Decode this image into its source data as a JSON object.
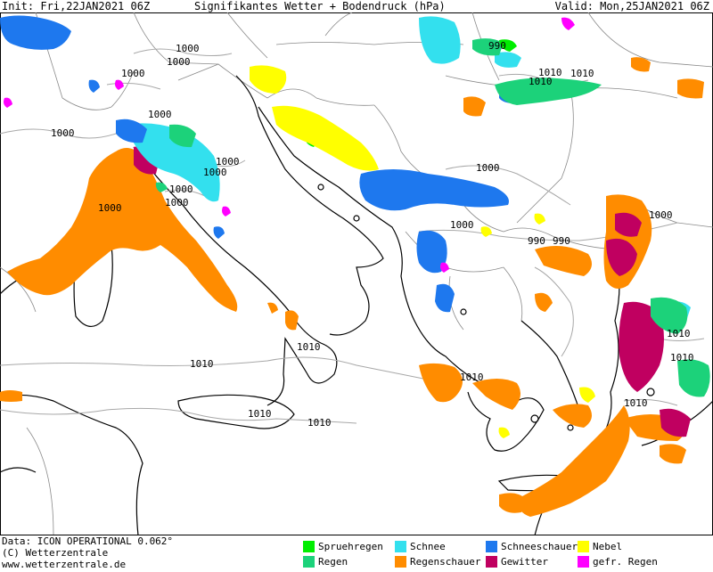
{
  "header": {
    "init": "Init: Fri,22JAN2021 06Z",
    "title": "Signifikantes Wetter +  Bodendruck (hPa)",
    "valid": "Valid: Mon,25JAN2021 06Z"
  },
  "isobars": [
    "1010",
    "1010",
    "1010",
    "1000",
    "1000",
    "1000",
    "1000",
    "1000",
    "1000",
    "1000",
    "1000",
    "1000",
    "1000",
    "1000",
    "1000",
    "1000",
    "990",
    "990",
    "990",
    "1010",
    "1010",
    "1010",
    "1010",
    "1010",
    "1010",
    "1010",
    "1010"
  ],
  "footer": {
    "data_line": "Data: ICON OPERATIONAL 0.062°",
    "copyright_line": "(C) Wetterzentrale",
    "url_line": "www.wetterzentrale.de"
  },
  "legend": [
    {
      "label": "Spruehregen",
      "color": "#00ee00"
    },
    {
      "label": "Schnee",
      "color": "#33e0ee"
    },
    {
      "label": "Schneeschauer",
      "color": "#1e78ee"
    },
    {
      "label": "Nebel",
      "color": "#ffff00"
    },
    {
      "label": "Regen",
      "color": "#1cd27a"
    },
    {
      "label": "Regenschauer",
      "color": "#ff8c00"
    },
    {
      "label": "Gewitter",
      "color": "#c00060"
    },
    {
      "label": "gefr. Regen",
      "color": "#ff00ff"
    }
  ]
}
